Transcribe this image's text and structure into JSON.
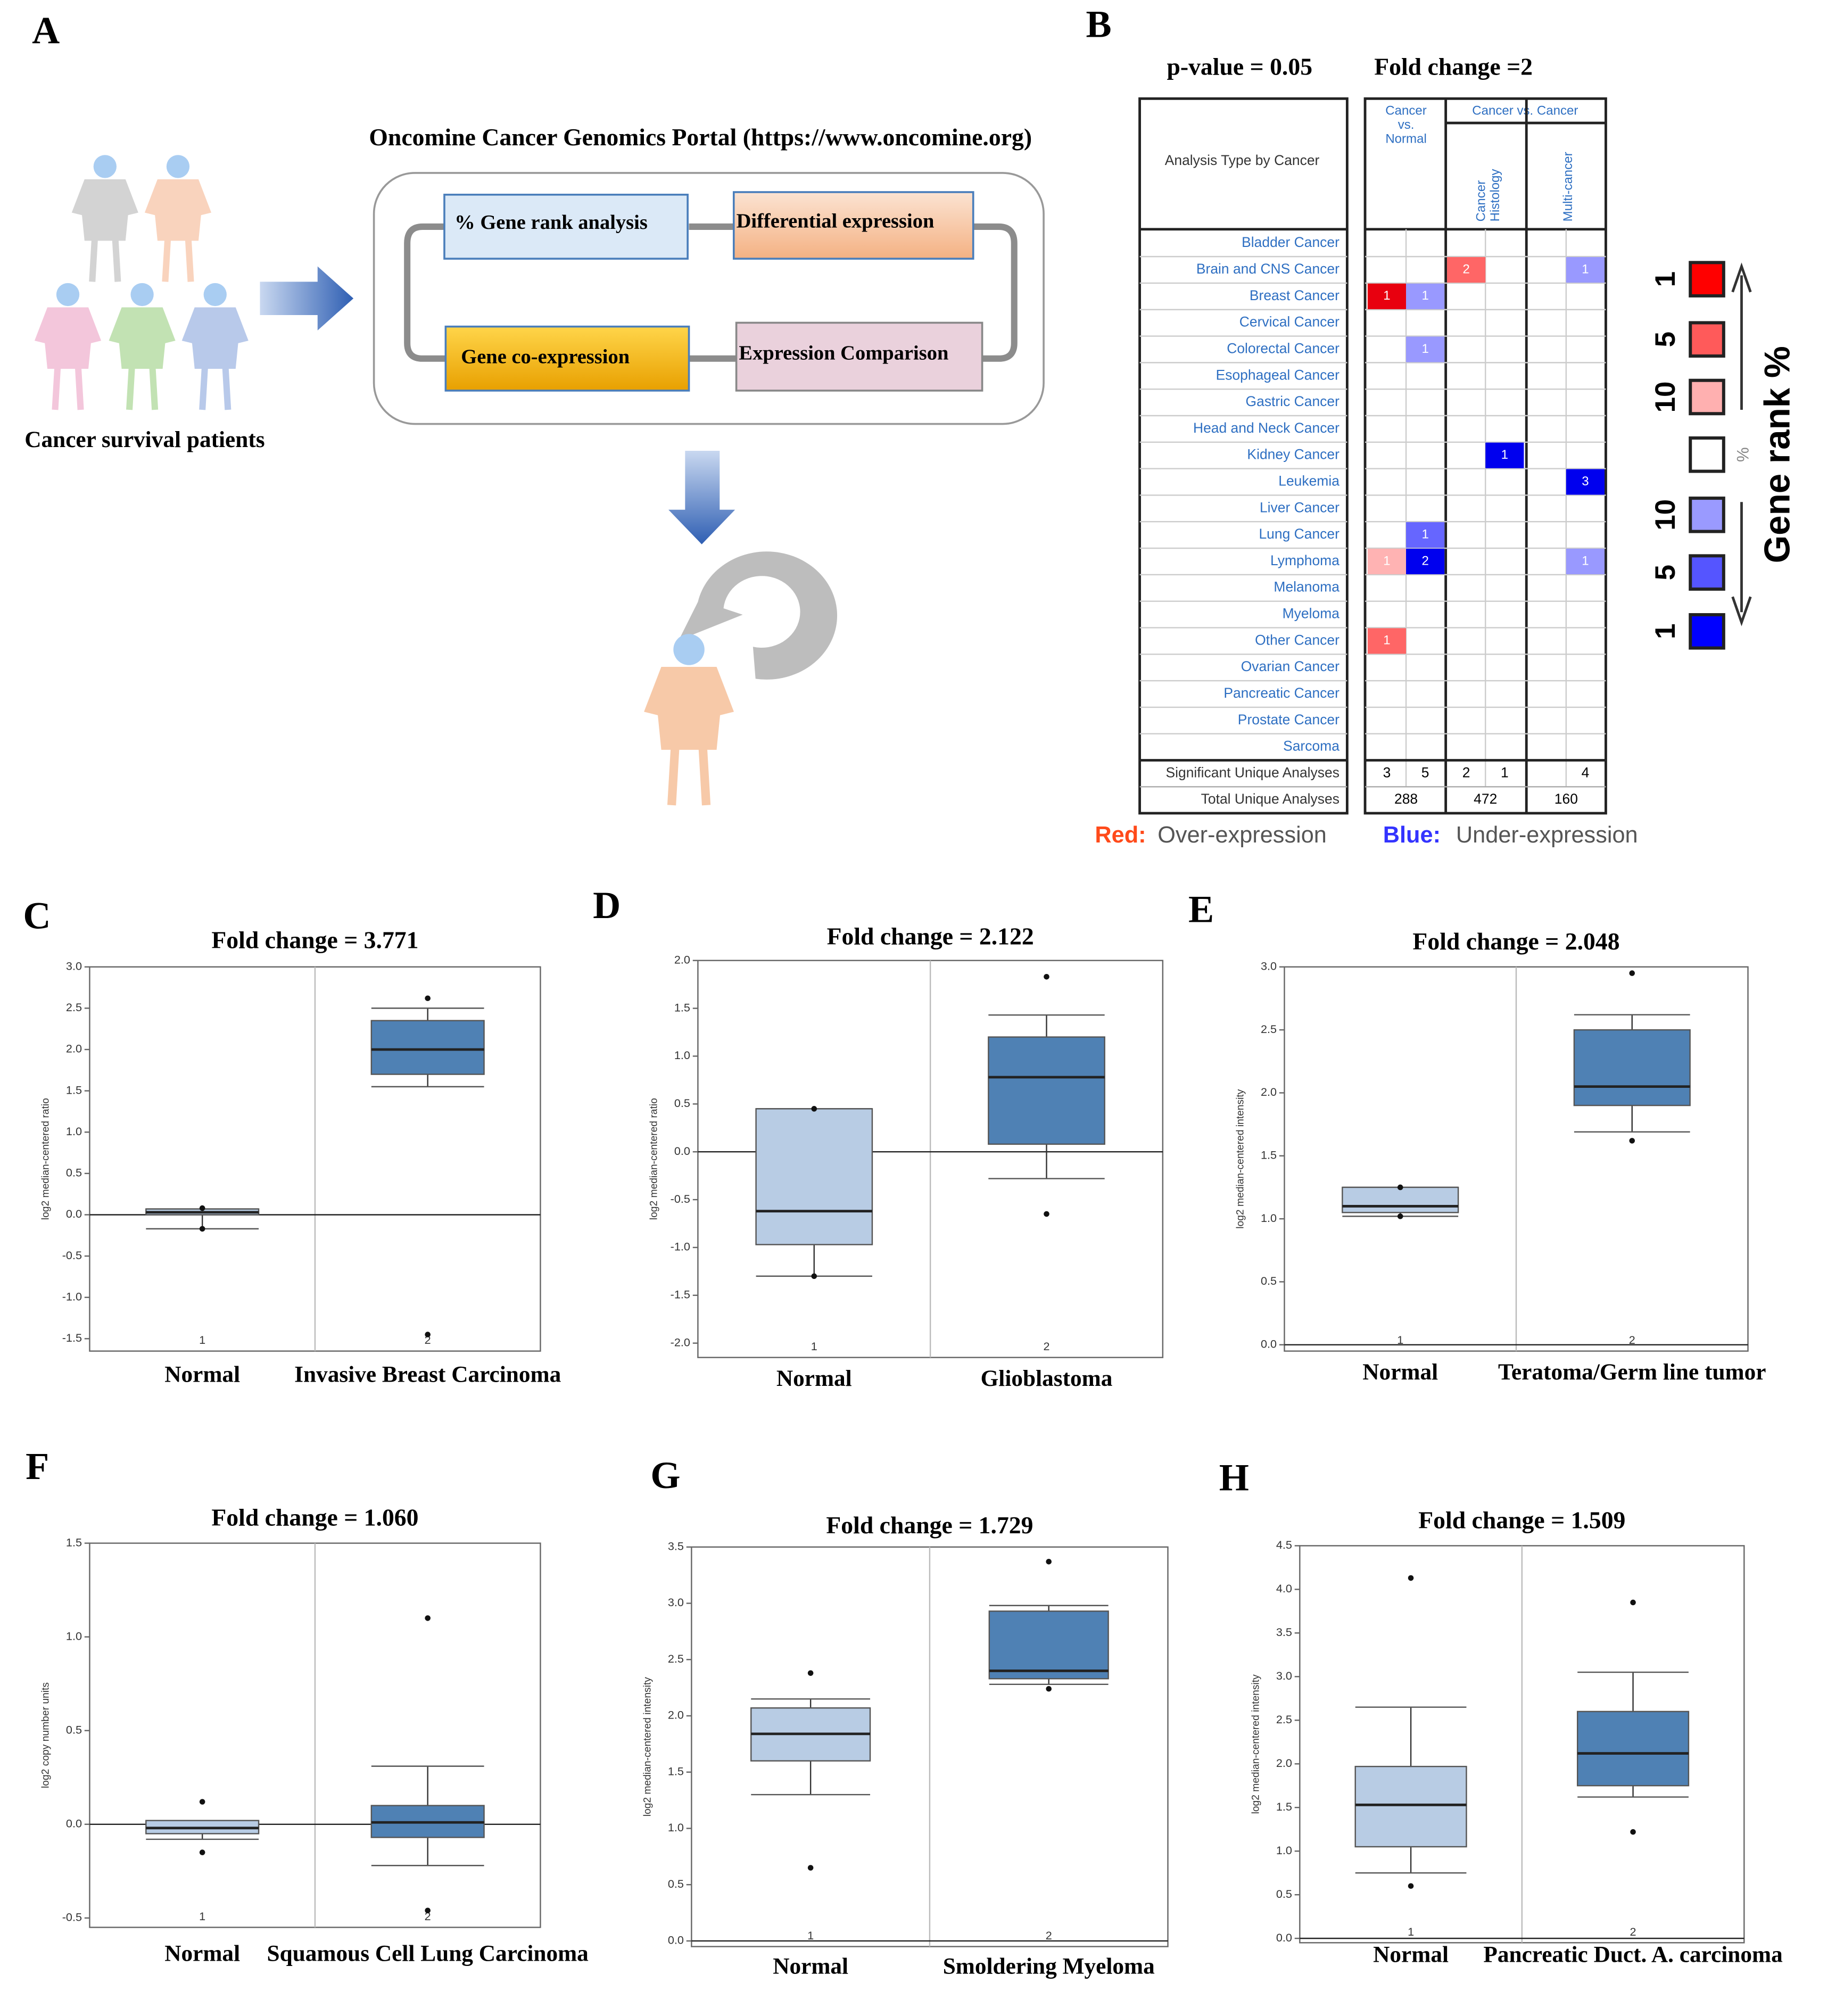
{
  "panel_a": {
    "label": "A",
    "portal_title": "Oncomine Cancer Genomics Portal (https://www.oncomine.org)",
    "steps": [
      "% Gene rank analysis",
      "Differential expression",
      "Gene co-expression",
      "Expression Comparison"
    ],
    "caption": "Cancer survival patients"
  },
  "panel_b": {
    "label": "B",
    "p_value": "p-value = 0.05",
    "fold_change": "Fold change =2",
    "row_header": "Analysis Type by Cancer",
    "group_headers": [
      [
        "Cancer",
        "vs.",
        "Normal"
      ],
      [
        "Cancer vs. Cancer"
      ]
    ],
    "sub_headers": [
      [
        "Cancer",
        "Histology"
      ],
      [
        "Multi-cancer"
      ]
    ],
    "rows": [
      {
        "name": "Bladder Cancer",
        "cells": [
          null,
          null,
          null,
          null,
          null,
          null
        ],
        "colors": [
          null,
          null,
          null,
          null,
          null,
          null
        ]
      },
      {
        "name": "Brain and CNS Cancer",
        "cells": [
          null,
          null,
          2,
          null,
          null,
          1
        ],
        "colors": [
          null,
          null,
          "#ff6666",
          null,
          null,
          "#9999ff"
        ]
      },
      {
        "name": "Breast Cancer",
        "cells": [
          1,
          1,
          null,
          null,
          null,
          null
        ],
        "colors": [
          "#e8000f",
          "#9999ff",
          null,
          null,
          null,
          null
        ]
      },
      {
        "name": "Cervical Cancer",
        "cells": [
          null,
          null,
          null,
          null,
          null,
          null
        ],
        "colors": [
          null,
          null,
          null,
          null,
          null,
          null
        ]
      },
      {
        "name": "Colorectal Cancer",
        "cells": [
          null,
          1,
          null,
          null,
          null,
          null
        ],
        "colors": [
          null,
          "#9999ff",
          null,
          null,
          null,
          null
        ]
      },
      {
        "name": "Esophageal Cancer",
        "cells": [
          null,
          null,
          null,
          null,
          null,
          null
        ],
        "colors": [
          null,
          null,
          null,
          null,
          null,
          null
        ]
      },
      {
        "name": "Gastric Cancer",
        "cells": [
          null,
          null,
          null,
          null,
          null,
          null
        ],
        "colors": [
          null,
          null,
          null,
          null,
          null,
          null
        ]
      },
      {
        "name": "Head and Neck Cancer",
        "cells": [
          null,
          null,
          null,
          null,
          null,
          null
        ],
        "colors": [
          null,
          null,
          null,
          null,
          null,
          null
        ]
      },
      {
        "name": "Kidney Cancer",
        "cells": [
          null,
          null,
          null,
          1,
          null,
          null
        ],
        "colors": [
          null,
          null,
          null,
          "#0000ee",
          null,
          null
        ]
      },
      {
        "name": "Leukemia",
        "cells": [
          null,
          null,
          null,
          null,
          null,
          3
        ],
        "colors": [
          null,
          null,
          null,
          null,
          null,
          "#0000ee"
        ]
      },
      {
        "name": "Liver Cancer",
        "cells": [
          null,
          null,
          null,
          null,
          null,
          null
        ],
        "colors": [
          null,
          null,
          null,
          null,
          null,
          null
        ]
      },
      {
        "name": "Lung Cancer",
        "cells": [
          null,
          1,
          null,
          null,
          null,
          null
        ],
        "colors": [
          null,
          "#6666ff",
          null,
          null,
          null,
          null
        ]
      },
      {
        "name": "Lymphoma",
        "cells": [
          1,
          2,
          null,
          null,
          null,
          1
        ],
        "colors": [
          "#ffb3b3",
          "#0000ee",
          null,
          null,
          null,
          "#9999ff"
        ]
      },
      {
        "name": "Melanoma",
        "cells": [
          null,
          null,
          null,
          null,
          null,
          null
        ],
        "colors": [
          null,
          null,
          null,
          null,
          null,
          null
        ]
      },
      {
        "name": "Myeloma",
        "cells": [
          null,
          null,
          null,
          null,
          null,
          null
        ],
        "colors": [
          null,
          null,
          null,
          null,
          null,
          null
        ]
      },
      {
        "name": "Other Cancer",
        "cells": [
          1,
          null,
          null,
          null,
          null,
          null
        ],
        "colors": [
          "#ff6666",
          null,
          null,
          null,
          null,
          null
        ]
      },
      {
        "name": "Ovarian Cancer",
        "cells": [
          null,
          null,
          null,
          null,
          null,
          null
        ],
        "colors": [
          null,
          null,
          null,
          null,
          null,
          null
        ]
      },
      {
        "name": "Pancreatic Cancer",
        "cells": [
          null,
          null,
          null,
          null,
          null,
          null
        ],
        "colors": [
          null,
          null,
          null,
          null,
          null,
          null
        ]
      },
      {
        "name": "Prostate Cancer",
        "cells": [
          null,
          null,
          null,
          null,
          null,
          null
        ],
        "colors": [
          null,
          null,
          null,
          null,
          null,
          null
        ]
      },
      {
        "name": "Sarcoma",
        "cells": [
          null,
          null,
          null,
          null,
          null,
          null
        ],
        "colors": [
          null,
          null,
          null,
          null,
          null,
          null
        ]
      }
    ],
    "significant": {
      "label": "Significant Unique Analyses",
      "values": [
        3,
        5,
        2,
        1,
        null,
        4
      ]
    },
    "total": {
      "label": "Total Unique Analyses",
      "values": [
        288,
        472,
        160
      ]
    },
    "legend": {
      "red_key": "Red:",
      "red_text": "Over-expression",
      "blue_key": "Blue:",
      "blue_text": "Under-expression"
    },
    "gene_rank": {
      "title": "Gene rank %",
      "scale": [
        {
          "label": "1",
          "color": "#ff0000"
        },
        {
          "label": "5",
          "color": "#ff5a5a"
        },
        {
          "label": "10",
          "color": "#ffb0b0"
        },
        {
          "label": "%",
          "color": "#ffffff"
        },
        {
          "label": "10",
          "color": "#9a9aff"
        },
        {
          "label": "5",
          "color": "#5555ff"
        },
        {
          "label": "1",
          "color": "#0000ff"
        }
      ]
    }
  },
  "chart_data": [
    {
      "type": "box",
      "panel_label": "C",
      "title": "Fold change = 3.771",
      "ylabel": "log2 median-centered ratio",
      "categories": [
        "Normal",
        "Invasive Breast Carcinoma"
      ],
      "xticks": [
        1,
        2
      ],
      "hline": 0,
      "ylim": [
        -1.65,
        3.0
      ],
      "yticks": [
        -1.5,
        {
          "value": -1,
          "label": "-1.0"
        },
        -0.5,
        {
          "value": 0,
          "label": "0.0"
        },
        0.5,
        {
          "value": 1,
          "label": "1.0"
        },
        1.5,
        {
          "value": 2,
          "label": "2.0"
        },
        2.5,
        {
          "value": 3,
          "label": "3.0"
        }
      ],
      "boxes": [
        {
          "color": "#b8cce4",
          "low": -0.17,
          "q1": 0.0,
          "median": 0.03,
          "q3": 0.07,
          "high": 0.07,
          "outliers": [
            0.08,
            -0.17
          ]
        },
        {
          "color": "#4f81b4",
          "low": 1.55,
          "q1": 1.7,
          "median": 2.0,
          "q3": 2.35,
          "high": 2.5,
          "outliers": [
            2.62,
            -1.45
          ]
        }
      ]
    },
    {
      "type": "box",
      "panel_label": "D",
      "title": "Fold change = 2.122",
      "ylabel": "log2 median-centered ratio",
      "categories": [
        "Normal",
        "Glioblastoma"
      ],
      "xticks": [
        1,
        2
      ],
      "hline": 0,
      "ylim": [
        -2.15,
        2.0
      ],
      "yticks": [
        {
          "value": -2,
          "label": "-2.0"
        },
        -1.5,
        {
          "value": -1,
          "label": "-1.0"
        },
        -0.5,
        {
          "value": 0,
          "label": "0.0"
        },
        0.5,
        {
          "value": 1,
          "label": "1.0"
        },
        1.5,
        {
          "value": 2,
          "label": "2.0"
        }
      ],
      "boxes": [
        {
          "color": "#b8cce4",
          "low": -1.3,
          "q1": -0.97,
          "median": -0.62,
          "q3": 0.45,
          "high": 0.45,
          "outliers": [
            -1.3,
            0.45
          ]
        },
        {
          "color": "#4f81b4",
          "low": -0.28,
          "q1": 0.08,
          "median": 0.78,
          "q3": 1.2,
          "high": 1.43,
          "outliers": [
            1.83,
            -0.65
          ]
        }
      ]
    },
    {
      "type": "box",
      "panel_label": "E",
      "title": "Fold change = 2.048",
      "ylabel": "log2 median-centered intensity",
      "categories": [
        "Normal",
        "Teratoma/Germ line tumor"
      ],
      "xticks": [
        1,
        2
      ],
      "hline": 0,
      "ylim": [
        -0.05,
        3.0
      ],
      "yticks": [
        {
          "value": 0,
          "label": "0.0"
        },
        0.5,
        {
          "value": 1,
          "label": "1.0"
        },
        1.5,
        {
          "value": 2,
          "label": "2.0"
        },
        2.5,
        {
          "value": 3,
          "label": "3.0"
        }
      ],
      "boxes": [
        {
          "color": "#b8cce4",
          "low": 1.02,
          "q1": 1.05,
          "median": 1.1,
          "q3": 1.25,
          "high": 1.25,
          "outliers": [
            1.25,
            1.02
          ]
        },
        {
          "color": "#4f81b4",
          "low": 1.69,
          "q1": 1.9,
          "median": 2.05,
          "q3": 2.5,
          "high": 2.62,
          "outliers": [
            2.95,
            1.62
          ]
        }
      ]
    },
    {
      "type": "box",
      "panel_label": "F",
      "title": "Fold change = 1.060",
      "ylabel": "log2 copy number units",
      "categories": [
        "Normal",
        "Squamous Cell Lung Carcinoma"
      ],
      "xticks": [
        1,
        2
      ],
      "hline": 0,
      "ylim": [
        -0.55,
        1.5
      ],
      "yticks": [
        -0.5,
        {
          "value": 0,
          "label": "0.0"
        },
        0.5,
        {
          "value": 1,
          "label": "1.0"
        },
        1.5
      ],
      "boxes": [
        {
          "color": "#b8cce4",
          "low": -0.08,
          "q1": -0.05,
          "median": -0.02,
          "q3": 0.02,
          "high": 0.02,
          "outliers": [
            0.12,
            -0.15
          ]
        },
        {
          "color": "#4f81b4",
          "low": -0.22,
          "q1": -0.07,
          "median": 0.01,
          "q3": 0.1,
          "high": 0.31,
          "outliers": [
            1.1,
            -0.46
          ]
        }
      ]
    },
    {
      "type": "box",
      "panel_label": "G",
      "title": "Fold change = 1.729",
      "ylabel": "log2 median-centered intensity",
      "categories": [
        "Normal",
        "Smoldering Myeloma"
      ],
      "xticks": [
        1,
        2
      ],
      "hline": 0,
      "ylim": [
        -0.05,
        3.5
      ],
      "yticks": [
        {
          "value": 0,
          "label": "0.0"
        },
        0.5,
        {
          "value": 1,
          "label": "1.0"
        },
        1.5,
        {
          "value": 2,
          "label": "2.0"
        },
        2.5,
        {
          "value": 3,
          "label": "3.0"
        },
        3.5
      ],
      "boxes": [
        {
          "color": "#b8cce4",
          "low": 1.3,
          "q1": 1.6,
          "median": 1.84,
          "q3": 2.07,
          "high": 2.15,
          "outliers": [
            2.38,
            0.65
          ]
        },
        {
          "color": "#4f81b4",
          "low": 2.28,
          "q1": 2.33,
          "median": 2.4,
          "q3": 2.93,
          "high": 2.98,
          "outliers": [
            3.37,
            2.24
          ]
        }
      ]
    },
    {
      "type": "box",
      "panel_label": "H",
      "title": "Fold change = 1.509",
      "ylabel": "log2 median-centered intensity",
      "categories": [
        "Normal",
        "Pancreatic Duct. A. carcinoma"
      ],
      "xticks": [
        1,
        2
      ],
      "hline": 0,
      "ylim": [
        -0.05,
        4.5
      ],
      "yticks": [
        {
          "value": 0,
          "label": "0.0"
        },
        0.5,
        {
          "value": 1,
          "label": "1.0"
        },
        1.5,
        {
          "value": 2,
          "label": "2.0"
        },
        2.5,
        {
          "value": 3,
          "label": "3.0"
        },
        3.5,
        {
          "value": 4,
          "label": "4.0"
        },
        4.5
      ],
      "boxes": [
        {
          "color": "#b8cce4",
          "low": 0.75,
          "q1": 1.05,
          "median": 1.53,
          "q3": 1.97,
          "high": 2.65,
          "outliers": [
            4.13,
            0.6
          ]
        },
        {
          "color": "#4f81b4",
          "low": 1.62,
          "q1": 1.75,
          "median": 2.12,
          "q3": 2.6,
          "high": 3.05,
          "outliers": [
            3.85,
            1.22
          ]
        }
      ]
    }
  ]
}
